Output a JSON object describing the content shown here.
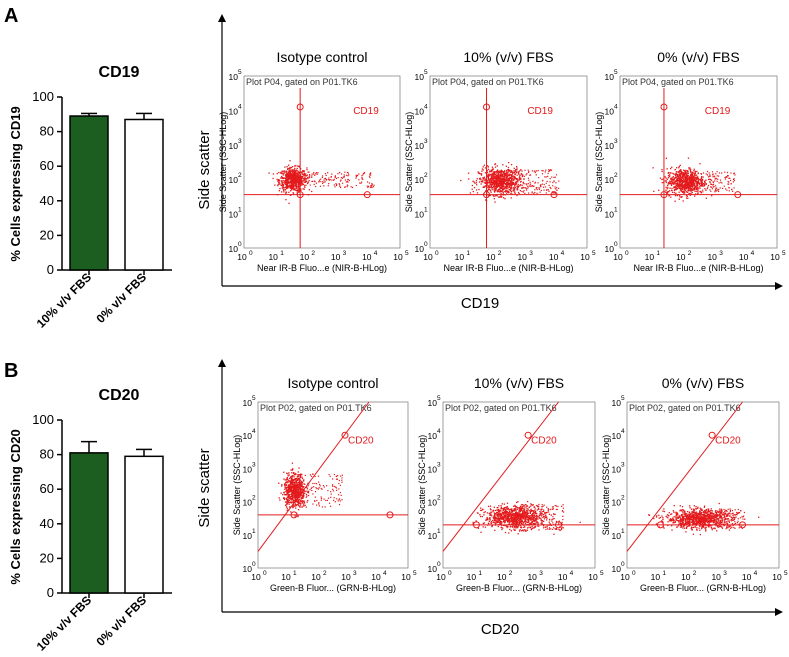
{
  "chart_data": [
    {
      "type": "bar",
      "panel": "A",
      "title": "CD19",
      "ylabel": "% Cells expressing CD19",
      "categories": [
        "10% v/v FBS",
        "0% v/v FBS"
      ],
      "values": [
        89,
        87
      ],
      "errors": [
        1.5,
        3.5
      ],
      "colors": [
        "#1b5e20",
        "#ffffff"
      ],
      "ylim": [
        0,
        100
      ],
      "yticks": [
        0,
        20,
        40,
        60,
        80,
        100
      ]
    },
    {
      "type": "bar",
      "panel": "B",
      "title": "CD20",
      "ylabel": "% Cells expressing CD20",
      "categories": [
        "10% v/v FBS",
        "0% v/v FBS"
      ],
      "values": [
        81,
        79
      ],
      "errors": [
        6.5,
        4.0
      ],
      "colors": [
        "#1b5e20",
        "#ffffff"
      ],
      "ylim": [
        0,
        100
      ],
      "yticks": [
        0,
        20,
        40,
        60,
        80,
        100
      ]
    },
    {
      "type": "scatter",
      "panel": "A",
      "title": "Flow cytometry dot plots, CD19",
      "outer_xlabel": "CD19",
      "outer_ylabel": "Side scatter",
      "plot_caption": "Plot P04, gated on P01.TK6",
      "xlabel": "Near IR-B Fluo...e (NIR-B-HLog)",
      "ylabel": "Side Scatter (SSC-HLog)",
      "gate_label": "CD19",
      "axis_range_log10": [
        0,
        5
      ],
      "conditions": [
        "Isotype control",
        "10% (v/v) FBS",
        "0% (v/v) FBS"
      ]
    },
    {
      "type": "scatter",
      "panel": "B",
      "title": "Flow cytometry dot plots, CD20",
      "outer_xlabel": "CD20",
      "outer_ylabel": "Side scatter",
      "plot_caption": "Plot P02, gated on P01.TK6",
      "xlabel": "Green-B Fluor... (GRN-B-HLog)",
      "ylabel": "Side Scatter (SSC-HLog)",
      "gate_label": "CD20",
      "axis_range_log10": [
        0,
        5
      ],
      "conditions": [
        "Isotype control",
        "10% (v/v) FBS",
        "0% (v/v) FBS"
      ]
    }
  ],
  "panels": {
    "a": "A",
    "b": "B"
  },
  "ticks": {
    "exp": [
      "0",
      "1",
      "2",
      "3",
      "4",
      "5"
    ],
    "bar": [
      "0",
      "20",
      "40",
      "60",
      "80",
      "100"
    ]
  },
  "colors": {
    "dots": "#e31a1c",
    "gate": "#e31a1c",
    "bar_fill_10": "#1b5e20",
    "axis": "#000000"
  }
}
